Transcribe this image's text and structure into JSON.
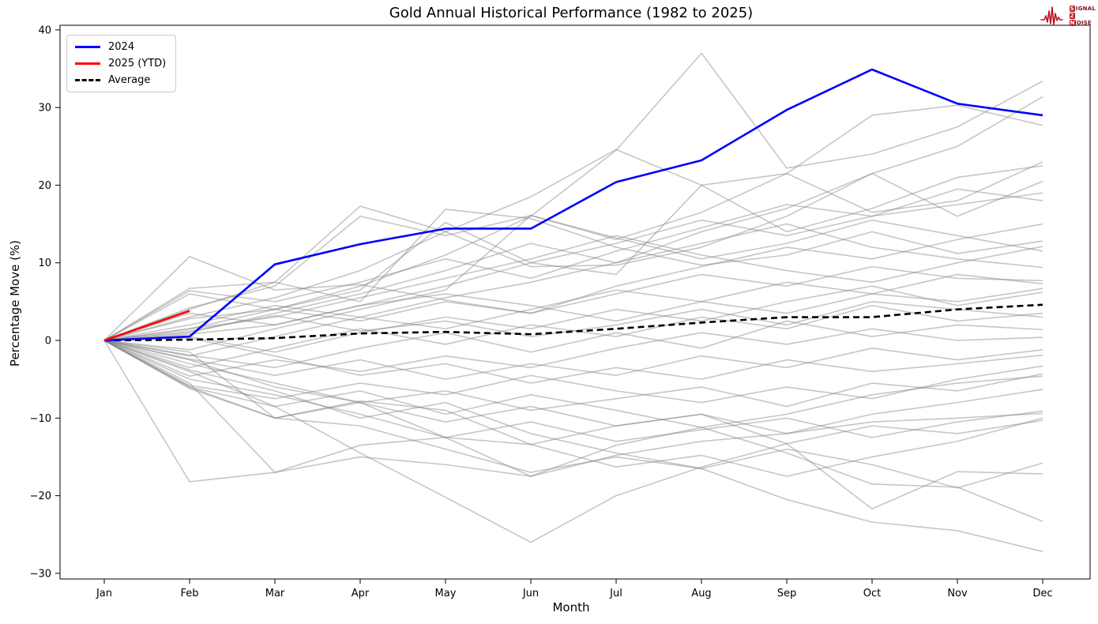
{
  "title": "Gold Annual Historical Performance (1982 to 2025)",
  "logo": {
    "accent_color": "#c1121f",
    "rows": [
      {
        "boxed": "S",
        "rest": "IGNAL"
      },
      {
        "boxed": "2",
        "rest": ""
      },
      {
        "boxed": "N",
        "rest": "OISE"
      }
    ]
  },
  "chart_data": {
    "type": "line",
    "title": "Gold Annual Historical Performance (1982 to 2025)",
    "xlabel": "Month",
    "ylabel": "Percentage Move (%)",
    "x_categories": [
      "Jan",
      "Feb",
      "Mar",
      "Apr",
      "May",
      "Jun",
      "Jul",
      "Aug",
      "Sep",
      "Oct",
      "Nov",
      "Dec"
    ],
    "ylim": [
      -30,
      40
    ],
    "yticks": [
      40,
      30,
      20,
      10,
      0,
      -10,
      -20,
      -30
    ],
    "ytick_labels": [
      "40",
      "30",
      "20",
      "10",
      "0",
      "−10",
      "−20",
      "−30"
    ],
    "grid": false,
    "legend": {
      "position": "upper-left",
      "entries": [
        {
          "label": "2024",
          "color": "#0000ff",
          "dash": "solid"
        },
        {
          "label": "2025 (YTD)",
          "color": "#ff0000",
          "dash": "solid"
        },
        {
          "label": "Average",
          "color": "#000000",
          "dash": "dashed"
        }
      ]
    },
    "series": [
      {
        "name": "2024",
        "color": "#0000ff",
        "width": 2.6,
        "dash": null,
        "values": [
          0,
          0.5,
          9.8,
          12.4,
          14.4,
          14.4,
          20.4,
          23.2,
          29.7,
          34.9,
          30.5,
          29.0
        ]
      },
      {
        "name": "2025 (YTD)",
        "color": "#ff0000",
        "width": 2.6,
        "dash": null,
        "values": [
          0,
          3.8
        ]
      },
      {
        "name": "Average",
        "color": "#000000",
        "width": 2.6,
        "dash": [
          8,
          5
        ],
        "values": [
          0,
          0.1,
          0.3,
          0.9,
          1.1,
          0.8,
          1.5,
          2.3,
          3.0,
          3.0,
          4.0,
          4.6
        ]
      }
    ],
    "background_series": {
      "name": "individual years 1982-2023",
      "color": "rgba(128,128,128,0.45)",
      "width": 1.6,
      "values_list": [
        [
          0,
          1.5,
          4,
          7,
          11,
          16,
          24.5,
          37,
          22.2,
          24,
          27.5,
          33.4
        ],
        [
          0,
          6.7,
          7.5,
          17.3,
          14,
          9.5,
          9.7,
          12,
          16,
          21.5,
          25,
          31.4
        ],
        [
          0,
          4.2,
          7,
          16,
          13.5,
          16.1,
          13,
          16.5,
          21.5,
          29,
          30.3,
          27.7
        ],
        [
          0,
          3,
          5.5,
          9,
          14,
          18.5,
          24.6,
          20,
          21.5,
          16.5,
          18,
          23
        ],
        [
          0,
          2.8,
          4,
          6.5,
          15.2,
          10,
          8.5,
          20,
          14,
          17,
          21,
          22.5
        ],
        [
          0,
          1,
          3.5,
          6,
          9,
          12.5,
          10,
          14,
          17,
          21.5,
          16,
          20.5
        ],
        [
          0,
          6.4,
          5,
          7.5,
          10.5,
          8,
          11.5,
          14.5,
          17.5,
          16,
          17.5,
          19
        ],
        [
          0,
          0.8,
          2,
          4.5,
          7,
          10,
          12.5,
          15.5,
          13.5,
          16,
          19.5,
          18
        ],
        [
          0,
          10.8,
          6.5,
          7.2,
          5.2,
          3.5,
          7,
          9.5,
          12,
          10.5,
          13,
          15
        ],
        [
          0,
          4,
          7.5,
          5,
          16.9,
          15.7,
          12,
          9.7,
          11,
          14,
          11.2,
          12.8
        ],
        [
          0,
          1.5,
          3,
          5.5,
          8,
          10.5,
          13.5,
          11,
          9,
          7.5,
          10,
          12.1
        ],
        [
          0,
          -1.2,
          1.5,
          4,
          6.5,
          16.1,
          13.2,
          10.5,
          12.5,
          15.5,
          13.5,
          11.5
        ],
        [
          0,
          2,
          4.5,
          3,
          5.5,
          7.5,
          10,
          12.5,
          15,
          12,
          10.5,
          9.4
        ],
        [
          0,
          6,
          4,
          2.5,
          5,
          3.5,
          6,
          8.5,
          7,
          9.5,
          8,
          7.7
        ],
        [
          0,
          -2,
          0.5,
          3,
          1.5,
          4,
          6.5,
          5,
          7.5,
          6,
          8.5,
          7.3
        ],
        [
          0,
          3.5,
          2,
          4.5,
          6,
          4.5,
          2.5,
          5,
          3.5,
          6,
          5,
          6.7
        ],
        [
          0,
          0.5,
          -1.5,
          1,
          3,
          1.5,
          4,
          2.5,
          5,
          7,
          4.5,
          6.2
        ],
        [
          0,
          -3.5,
          -1,
          1.5,
          -0.5,
          2,
          0.5,
          3,
          1.5,
          4.5,
          2.5,
          3.5
        ],
        [
          0,
          1.2,
          3.2,
          1.2,
          2.5,
          0.5,
          2,
          4,
          2,
          5,
          4,
          3
        ],
        [
          0,
          -1.9,
          -3.5,
          -1,
          1,
          -1.5,
          1,
          -1,
          2.5,
          0.5,
          2,
          1.4
        ],
        [
          0,
          -4.6,
          -2.5,
          -4,
          -2,
          -3.5,
          -1,
          1,
          -0.5,
          1.5,
          0,
          0.4
        ],
        [
          0,
          -2.4,
          -4.5,
          -2.5,
          -5,
          -3,
          -4.5,
          -2,
          -3.5,
          -1,
          -2.5,
          -1.2
        ],
        [
          0,
          0.3,
          -2,
          -4.5,
          -3,
          -5.5,
          -3.5,
          -5,
          -2.5,
          -4,
          -3,
          -1.9
        ],
        [
          0,
          -5.8,
          -7.5,
          -5.5,
          -7,
          -4.5,
          -6.5,
          -8,
          -6,
          -7.5,
          -5,
          -3.3
        ],
        [
          0,
          -3,
          -5.5,
          -8,
          -6.5,
          -9,
          -7.5,
          -6,
          -8.5,
          -5.5,
          -6.5,
          -4.3
        ],
        [
          0,
          -6,
          -8.5,
          -6.5,
          -9.5,
          -7,
          -9,
          -11.2,
          -9.5,
          -7,
          -5.5,
          -4.6
        ],
        [
          0,
          -1.5,
          -10,
          -8,
          -10.5,
          -8.5,
          -11,
          -9.5,
          -12,
          -9.5,
          -8,
          -6.3
        ],
        [
          0,
          -5,
          -7,
          -9.5,
          -12.5,
          -10.5,
          -13,
          -11.5,
          -10,
          -12.5,
          -10.5,
          -9.1
        ],
        [
          0,
          -18.2,
          -17,
          -15,
          -16,
          -17.5,
          -14.8,
          -13,
          -12,
          -10.5,
          -10,
          -9.4
        ],
        [
          0,
          -4,
          -8.5,
          -14.5,
          -20.2,
          -26,
          -20,
          -16.3,
          -13.3,
          -21.7,
          -16.9,
          -17.2
        ],
        [
          0,
          -6,
          -10,
          -11,
          -14,
          -17,
          -15,
          -16.5,
          -20.5,
          -23.4,
          -24.5,
          -27.2
        ],
        [
          0,
          -2.5,
          -6,
          -8,
          -12.5,
          -17.5,
          -13.5,
          -11.2,
          -14.5,
          -18.5,
          -18.9,
          -23.3
        ],
        [
          0,
          -3.8,
          -6.5,
          -10,
          -8,
          -12,
          -14.5,
          -16.5,
          -14,
          -16,
          -19,
          -15.8
        ],
        [
          0,
          -5.5,
          -17,
          -13.5,
          -12.5,
          -13.4,
          -16.3,
          -14.8,
          -17.5,
          -15,
          -13,
          -10
        ],
        [
          0,
          -6.2,
          -10,
          -7.8,
          -9,
          -13.4,
          -11,
          -9.5,
          -13.3,
          -11,
          -12,
          -10.3
        ]
      ]
    }
  }
}
